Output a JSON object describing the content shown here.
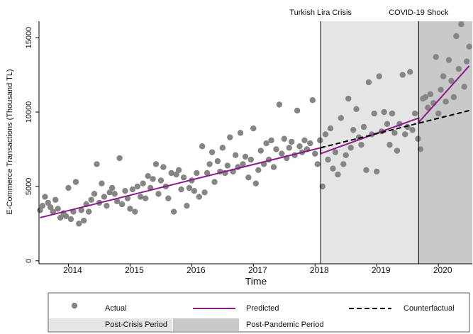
{
  "chart_data": {
    "type": "scatter",
    "x_label": "Time",
    "y_label": "E-Commerce Transactions (Thousand TL)",
    "xlim": [
      2014,
      2021.05
    ],
    "ylim": [
      -200,
      16100
    ],
    "xticks": [
      {
        "value": 2014.5,
        "label": "2014"
      },
      {
        "value": 2015.5,
        "label": "2015"
      },
      {
        "value": 2016.5,
        "label": "2016"
      },
      {
        "value": 2017.5,
        "label": "2017"
      },
      {
        "value": 2018.5,
        "label": "2018"
      },
      {
        "value": 2019.5,
        "label": "2019"
      },
      {
        "value": 2020.5,
        "label": "2020"
      }
    ],
    "yticks": [
      0,
      5000,
      10000,
      15000
    ],
    "regions": [
      {
        "name": "Post-Crisis Period",
        "start": 2018.59,
        "end": 2020.18,
        "color": "#e5e5e5"
      },
      {
        "name": "Post-Pandemic Period",
        "start": 2020.18,
        "end": 2021.05,
        "color": "#c9c9c9"
      }
    ],
    "annotations": [
      {
        "text": "Turkish Lira Crisis",
        "x": 2018.59
      },
      {
        "text": "COVID-19 Shock",
        "x": 2020.18
      }
    ],
    "series": [
      {
        "name": "Actual",
        "type": "scatter",
        "color": "#858585",
        "x": [
          2014.04,
          2014.08,
          2014.12,
          2014.17,
          2014.21,
          2014.25,
          2014.29,
          2014.33,
          2014.37,
          2014.42,
          2014.46,
          2014.5,
          2014.54,
          2014.58,
          2014.62,
          2014.67,
          2014.71,
          2014.75,
          2014.79,
          2014.83,
          2014.87,
          2014.92,
          2014.96,
          2015.0,
          2015.04,
          2015.08,
          2015.12,
          2015.17,
          2015.21,
          2015.25,
          2015.29,
          2015.33,
          2015.37,
          2015.42,
          2015.46,
          2015.5,
          2015.54,
          2015.58,
          2015.62,
          2015.67,
          2015.71,
          2015.75,
          2015.79,
          2015.83,
          2015.87,
          2015.92,
          2015.96,
          2016.0,
          2016.04,
          2016.08,
          2016.12,
          2016.17,
          2016.21,
          2016.25,
          2016.29,
          2016.33,
          2016.37,
          2016.42,
          2016.46,
          2016.5,
          2016.54,
          2016.58,
          2016.62,
          2016.67,
          2016.71,
          2016.75,
          2016.79,
          2016.83,
          2016.87,
          2016.92,
          2016.96,
          2017.0,
          2017.04,
          2017.08,
          2017.12,
          2017.17,
          2017.21,
          2017.25,
          2017.29,
          2017.33,
          2017.37,
          2017.42,
          2017.46,
          2017.5,
          2017.54,
          2017.58,
          2017.62,
          2017.67,
          2017.71,
          2017.75,
          2017.79,
          2017.83,
          2017.87,
          2017.92,
          2017.96,
          2018.0,
          2018.04,
          2018.08,
          2018.12,
          2018.17,
          2018.21,
          2018.25,
          2018.29,
          2018.33,
          2018.37,
          2018.42,
          2018.46,
          2018.5,
          2018.54,
          2018.58,
          2018.62,
          2018.67,
          2018.71,
          2018.75,
          2018.79,
          2018.83,
          2018.87,
          2018.92,
          2018.96,
          2019.0,
          2019.04,
          2019.08,
          2019.12,
          2019.17,
          2019.21,
          2019.25,
          2019.29,
          2019.33,
          2019.37,
          2019.42,
          2019.46,
          2019.5,
          2019.54,
          2019.58,
          2019.62,
          2019.67,
          2019.71,
          2019.75,
          2019.79,
          2019.83,
          2019.87,
          2019.92,
          2019.96,
          2020.0,
          2020.04,
          2020.08,
          2020.12,
          2020.17,
          2020.21,
          2020.25,
          2020.29,
          2020.33,
          2020.37,
          2020.42,
          2020.46,
          2020.5,
          2020.54,
          2020.58,
          2020.62,
          2020.67,
          2020.71,
          2020.75,
          2020.79,
          2020.83,
          2020.87,
          2020.92,
          2020.96,
          2021.0
        ],
        "values": [
          3400,
          3700,
          4300,
          3900,
          3600,
          3300,
          4100,
          3500,
          2900,
          3200,
          3000,
          4900,
          2800,
          3300,
          5300,
          2500,
          3400,
          2700,
          3800,
          3300,
          4100,
          4500,
          6500,
          3900,
          5200,
          4300,
          3700,
          4600,
          4900,
          4500,
          4000,
          6900,
          3800,
          4700,
          4200,
          3500,
          4800,
          3300,
          5000,
          4300,
          5200,
          4200,
          5700,
          4900,
          5500,
          6500,
          4500,
          5400,
          6300,
          5000,
          4200,
          5900,
          3300,
          5800,
          6100,
          4800,
          5600,
          3700,
          4900,
          5400,
          4700,
          5900,
          4300,
          7700,
          4600,
          5900,
          6500,
          7300,
          5300,
          6700,
          6000,
          7600,
          5900,
          6400,
          8300,
          6000,
          7100,
          6300,
          8600,
          6500,
          7000,
          5600,
          6800,
          8900,
          5200,
          6100,
          7400,
          6500,
          7900,
          6800,
          8100,
          6300,
          7500,
          10500,
          7200,
          8200,
          6900,
          7600,
          8000,
          7100,
          10100,
          7700,
          7300,
          8100,
          7500,
          7900,
          10800,
          7200,
          6500,
          8100,
          5000,
          8500,
          6800,
          8900,
          6200,
          7300,
          5800,
          9600,
          6500,
          7100,
          10900,
          7600,
          8800,
          10200,
          8300,
          7800,
          9000,
          6100,
          12000,
          8500,
          9900,
          6000,
          12400,
          8700,
          10000,
          9200,
          7800,
          9900,
          8600,
          7400,
          9200,
          12500,
          8500,
          9000,
          12700,
          8800,
          9900,
          8200,
          7500,
          10900,
          11000,
          10300,
          11200,
          10600,
          13700,
          9900,
          11500,
          12400,
          10700,
          13500,
          12100,
          11000,
          15100,
          12900,
          15900,
          11700,
          13400,
          14400
        ]
      },
      {
        "name": "Predicted",
        "type": "line",
        "color": "#8b1a8b",
        "x": [
          2014.04,
          2018.59,
          2018.59,
          2020.18,
          2020.18,
          2021.0
        ],
        "values": [
          2900,
          7600,
          7200,
          9600,
          9300,
          13100
        ]
      },
      {
        "name": "Counterfactual",
        "type": "line",
        "color": "#000000",
        "dashed": true,
        "x": [
          2018.59,
          2021.0
        ],
        "values": [
          7600,
          10100
        ]
      }
    ]
  }
}
